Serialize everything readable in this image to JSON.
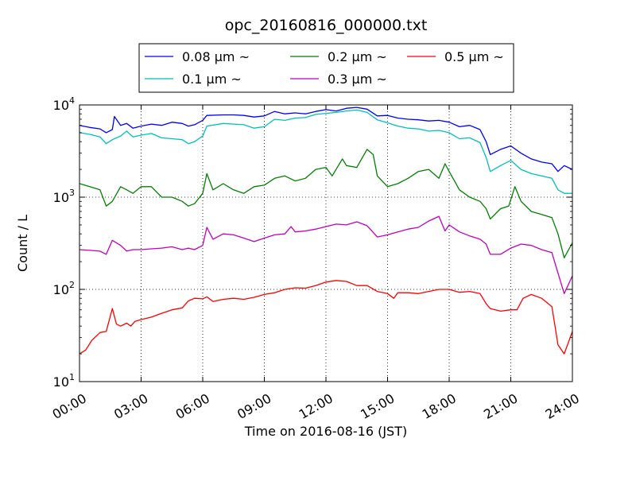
{
  "chart_data": {
    "type": "line",
    "title": "opc_20160816_000000.txt",
    "xlabel": "Time on 2016-08-16 (JST)",
    "ylabel": "Count / L",
    "x_unit": "hours",
    "xlim": [
      0,
      24
    ],
    "ylim": [
      10,
      10000
    ],
    "y_scale": "log",
    "grid": true,
    "legend_position": "top-center",
    "x_ticks": [
      {
        "value": 0,
        "label": "00:00"
      },
      {
        "value": 3,
        "label": "03:00"
      },
      {
        "value": 6,
        "label": "06:00"
      },
      {
        "value": 9,
        "label": "09:00"
      },
      {
        "value": 12,
        "label": "12:00"
      },
      {
        "value": 15,
        "label": "15:00"
      },
      {
        "value": 18,
        "label": "18:00"
      },
      {
        "value": 21,
        "label": "21:00"
      },
      {
        "value": 24,
        "label": "24:00"
      }
    ],
    "y_ticks": [
      {
        "value": 10,
        "base": "10",
        "exp": "1"
      },
      {
        "value": 100,
        "base": "10",
        "exp": "2"
      },
      {
        "value": 1000,
        "base": "10",
        "exp": "3"
      },
      {
        "value": 10000,
        "base": "10",
        "exp": "4"
      }
    ],
    "series": [
      {
        "name": "0.08 μm ~",
        "color": "#0000ff",
        "points": [
          [
            0,
            6000
          ],
          [
            0.5,
            5700
          ],
          [
            1,
            5500
          ],
          [
            1.3,
            5000
          ],
          [
            1.6,
            5400
          ],
          [
            1.7,
            7500
          ],
          [
            2,
            6000
          ],
          [
            2.3,
            6300
          ],
          [
            2.6,
            5600
          ],
          [
            3,
            5900
          ],
          [
            3.5,
            6200
          ],
          [
            4,
            6000
          ],
          [
            4.5,
            6500
          ],
          [
            5,
            6300
          ],
          [
            5.3,
            5900
          ],
          [
            5.6,
            6100
          ],
          [
            6,
            6800
          ],
          [
            6.2,
            7700
          ],
          [
            7,
            7800
          ],
          [
            7.5,
            7800
          ],
          [
            8,
            7700
          ],
          [
            8.5,
            7400
          ],
          [
            9,
            7600
          ],
          [
            9.5,
            8500
          ],
          [
            10,
            8000
          ],
          [
            10.5,
            8200
          ],
          [
            11,
            8000
          ],
          [
            11.5,
            8500
          ],
          [
            12,
            8900
          ],
          [
            12.5,
            8600
          ],
          [
            13,
            9200
          ],
          [
            13.5,
            9400
          ],
          [
            14,
            9000
          ],
          [
            14.5,
            7600
          ],
          [
            15,
            7700
          ],
          [
            15.5,
            7200
          ],
          [
            16,
            7000
          ],
          [
            16.5,
            6900
          ],
          [
            17,
            6700
          ],
          [
            17.5,
            6800
          ],
          [
            18,
            6500
          ],
          [
            18.5,
            5800
          ],
          [
            19,
            6000
          ],
          [
            19.5,
            5400
          ],
          [
            19.8,
            4000
          ],
          [
            20,
            2900
          ],
          [
            20.5,
            3300
          ],
          [
            21,
            3600
          ],
          [
            21.5,
            3000
          ],
          [
            22,
            2600
          ],
          [
            22.5,
            2400
          ],
          [
            23,
            2300
          ],
          [
            23.3,
            1900
          ],
          [
            23.6,
            2200
          ],
          [
            24,
            2000
          ]
        ]
      },
      {
        "name": "0.1 μm ~",
        "color": "#00bfbf",
        "points": [
          [
            0,
            5000
          ],
          [
            0.5,
            4800
          ],
          [
            1,
            4500
          ],
          [
            1.3,
            3800
          ],
          [
            1.6,
            4200
          ],
          [
            2,
            4600
          ],
          [
            2.3,
            5200
          ],
          [
            2.6,
            4500
          ],
          [
            3,
            4700
          ],
          [
            3.5,
            4900
          ],
          [
            4,
            4400
          ],
          [
            4.5,
            4300
          ],
          [
            5,
            4200
          ],
          [
            5.3,
            3800
          ],
          [
            5.6,
            4000
          ],
          [
            6,
            4600
          ],
          [
            6.2,
            5900
          ],
          [
            7,
            6300
          ],
          [
            7.5,
            6200
          ],
          [
            8,
            6100
          ],
          [
            8.5,
            5600
          ],
          [
            9,
            5800
          ],
          [
            9.5,
            7000
          ],
          [
            10,
            6800
          ],
          [
            10.5,
            7200
          ],
          [
            11,
            7300
          ],
          [
            11.5,
            7900
          ],
          [
            12,
            8100
          ],
          [
            12.5,
            8300
          ],
          [
            13,
            8600
          ],
          [
            13.5,
            8800
          ],
          [
            14,
            8300
          ],
          [
            14.5,
            6900
          ],
          [
            15,
            6400
          ],
          [
            15.5,
            5900
          ],
          [
            16,
            5600
          ],
          [
            16.5,
            5500
          ],
          [
            17,
            5200
          ],
          [
            17.5,
            5300
          ],
          [
            18,
            5000
          ],
          [
            18.5,
            4300
          ],
          [
            19,
            4400
          ],
          [
            19.5,
            3900
          ],
          [
            19.8,
            2700
          ],
          [
            20,
            1900
          ],
          [
            20.5,
            2200
          ],
          [
            21,
            2500
          ],
          [
            21.5,
            2000
          ],
          [
            22,
            1800
          ],
          [
            22.5,
            1700
          ],
          [
            23,
            1600
          ],
          [
            23.3,
            1200
          ],
          [
            23.6,
            1100
          ],
          [
            24,
            1100
          ]
        ]
      },
      {
        "name": "0.2 μm ~",
        "color": "#008000",
        "points": [
          [
            0,
            1400
          ],
          [
            0.5,
            1300
          ],
          [
            1,
            1200
          ],
          [
            1.3,
            800
          ],
          [
            1.6,
            900
          ],
          [
            2,
            1300
          ],
          [
            2.3,
            1200
          ],
          [
            2.6,
            1100
          ],
          [
            3,
            1300
          ],
          [
            3.5,
            1300
          ],
          [
            4,
            1000
          ],
          [
            4.5,
            1000
          ],
          [
            5,
            900
          ],
          [
            5.3,
            800
          ],
          [
            5.6,
            850
          ],
          [
            6,
            1100
          ],
          [
            6.2,
            1800
          ],
          [
            6.5,
            1200
          ],
          [
            7,
            1400
          ],
          [
            7.5,
            1200
          ],
          [
            8,
            1100
          ],
          [
            8.5,
            1300
          ],
          [
            9,
            1350
          ],
          [
            9.5,
            1600
          ],
          [
            10,
            1700
          ],
          [
            10.5,
            1500
          ],
          [
            11,
            1600
          ],
          [
            11.5,
            2000
          ],
          [
            12,
            2100
          ],
          [
            12.3,
            1700
          ],
          [
            12.8,
            2600
          ],
          [
            13,
            2200
          ],
          [
            13.5,
            2100
          ],
          [
            14,
            3300
          ],
          [
            14.3,
            2900
          ],
          [
            14.5,
            1700
          ],
          [
            15,
            1300
          ],
          [
            15.5,
            1400
          ],
          [
            16,
            1600
          ],
          [
            16.5,
            1900
          ],
          [
            17,
            2000
          ],
          [
            17.5,
            1600
          ],
          [
            17.8,
            2300
          ],
          [
            18,
            1900
          ],
          [
            18.5,
            1200
          ],
          [
            19,
            1000
          ],
          [
            19.5,
            900
          ],
          [
            19.8,
            750
          ],
          [
            20,
            580
          ],
          [
            20.5,
            750
          ],
          [
            20.9,
            800
          ],
          [
            21.2,
            1300
          ],
          [
            21.5,
            900
          ],
          [
            22,
            700
          ],
          [
            22.5,
            650
          ],
          [
            23,
            600
          ],
          [
            23.3,
            400
          ],
          [
            23.6,
            220
          ],
          [
            24,
            320
          ]
        ]
      },
      {
        "name": "0.3 μm ~",
        "color": "#bf00bf",
        "points": [
          [
            0,
            270
          ],
          [
            0.5,
            265
          ],
          [
            1,
            260
          ],
          [
            1.3,
            240
          ],
          [
            1.6,
            340
          ],
          [
            2,
            300
          ],
          [
            2.3,
            260
          ],
          [
            2.6,
            270
          ],
          [
            3,
            270
          ],
          [
            3.5,
            275
          ],
          [
            4,
            280
          ],
          [
            4.5,
            290
          ],
          [
            5,
            270
          ],
          [
            5.3,
            280
          ],
          [
            5.6,
            270
          ],
          [
            6,
            300
          ],
          [
            6.2,
            470
          ],
          [
            6.5,
            350
          ],
          [
            7,
            400
          ],
          [
            7.5,
            390
          ],
          [
            8,
            360
          ],
          [
            8.5,
            330
          ],
          [
            9,
            360
          ],
          [
            9.5,
            390
          ],
          [
            10,
            400
          ],
          [
            10.3,
            480
          ],
          [
            10.5,
            420
          ],
          [
            11,
            430
          ],
          [
            11.5,
            450
          ],
          [
            12,
            480
          ],
          [
            12.5,
            510
          ],
          [
            13,
            500
          ],
          [
            13.5,
            540
          ],
          [
            14,
            490
          ],
          [
            14.5,
            370
          ],
          [
            15,
            390
          ],
          [
            15.5,
            420
          ],
          [
            16,
            450
          ],
          [
            16.5,
            470
          ],
          [
            17,
            550
          ],
          [
            17.5,
            620
          ],
          [
            17.8,
            430
          ],
          [
            18,
            500
          ],
          [
            18.5,
            420
          ],
          [
            19,
            380
          ],
          [
            19.5,
            350
          ],
          [
            19.8,
            310
          ],
          [
            20,
            240
          ],
          [
            20.5,
            240
          ],
          [
            21,
            280
          ],
          [
            21.5,
            310
          ],
          [
            22,
            300
          ],
          [
            22.5,
            270
          ],
          [
            23,
            250
          ],
          [
            23.3,
            150
          ],
          [
            23.6,
            90
          ],
          [
            24,
            140
          ]
        ]
      },
      {
        "name": "0.5 μm ~",
        "color": "#ff0000",
        "points": [
          [
            0,
            20
          ],
          [
            0.3,
            22
          ],
          [
            0.6,
            28
          ],
          [
            1,
            34
          ],
          [
            1.3,
            35
          ],
          [
            1.6,
            62
          ],
          [
            1.8,
            42
          ],
          [
            2,
            40
          ],
          [
            2.3,
            43
          ],
          [
            2.5,
            40
          ],
          [
            2.7,
            45
          ],
          [
            3,
            47
          ],
          [
            3.5,
            50
          ],
          [
            4,
            55
          ],
          [
            4.5,
            60
          ],
          [
            5,
            63
          ],
          [
            5.3,
            75
          ],
          [
            5.6,
            80
          ],
          [
            6,
            79
          ],
          [
            6.2,
            83
          ],
          [
            6.5,
            74
          ],
          [
            7,
            78
          ],
          [
            7.5,
            80
          ],
          [
            8,
            78
          ],
          [
            8.5,
            82
          ],
          [
            9,
            88
          ],
          [
            9.5,
            92
          ],
          [
            10,
            100
          ],
          [
            10.5,
            104
          ],
          [
            11,
            103
          ],
          [
            11.5,
            110
          ],
          [
            12,
            120
          ],
          [
            12.5,
            125
          ],
          [
            13,
            122
          ],
          [
            13.5,
            110
          ],
          [
            14,
            110
          ],
          [
            14.5,
            95
          ],
          [
            15,
            90
          ],
          [
            15.3,
            80
          ],
          [
            15.5,
            92
          ],
          [
            16,
            92
          ],
          [
            16.5,
            90
          ],
          [
            17,
            95
          ],
          [
            17.5,
            100
          ],
          [
            18,
            100
          ],
          [
            18.5,
            93
          ],
          [
            19,
            95
          ],
          [
            19.5,
            90
          ],
          [
            19.8,
            70
          ],
          [
            20,
            62
          ],
          [
            20.5,
            58
          ],
          [
            21,
            60
          ],
          [
            21.3,
            60
          ],
          [
            21.6,
            80
          ],
          [
            22,
            88
          ],
          [
            22.5,
            80
          ],
          [
            23,
            65
          ],
          [
            23.3,
            25
          ],
          [
            23.6,
            20
          ],
          [
            24,
            35
          ]
        ]
      }
    ]
  }
}
